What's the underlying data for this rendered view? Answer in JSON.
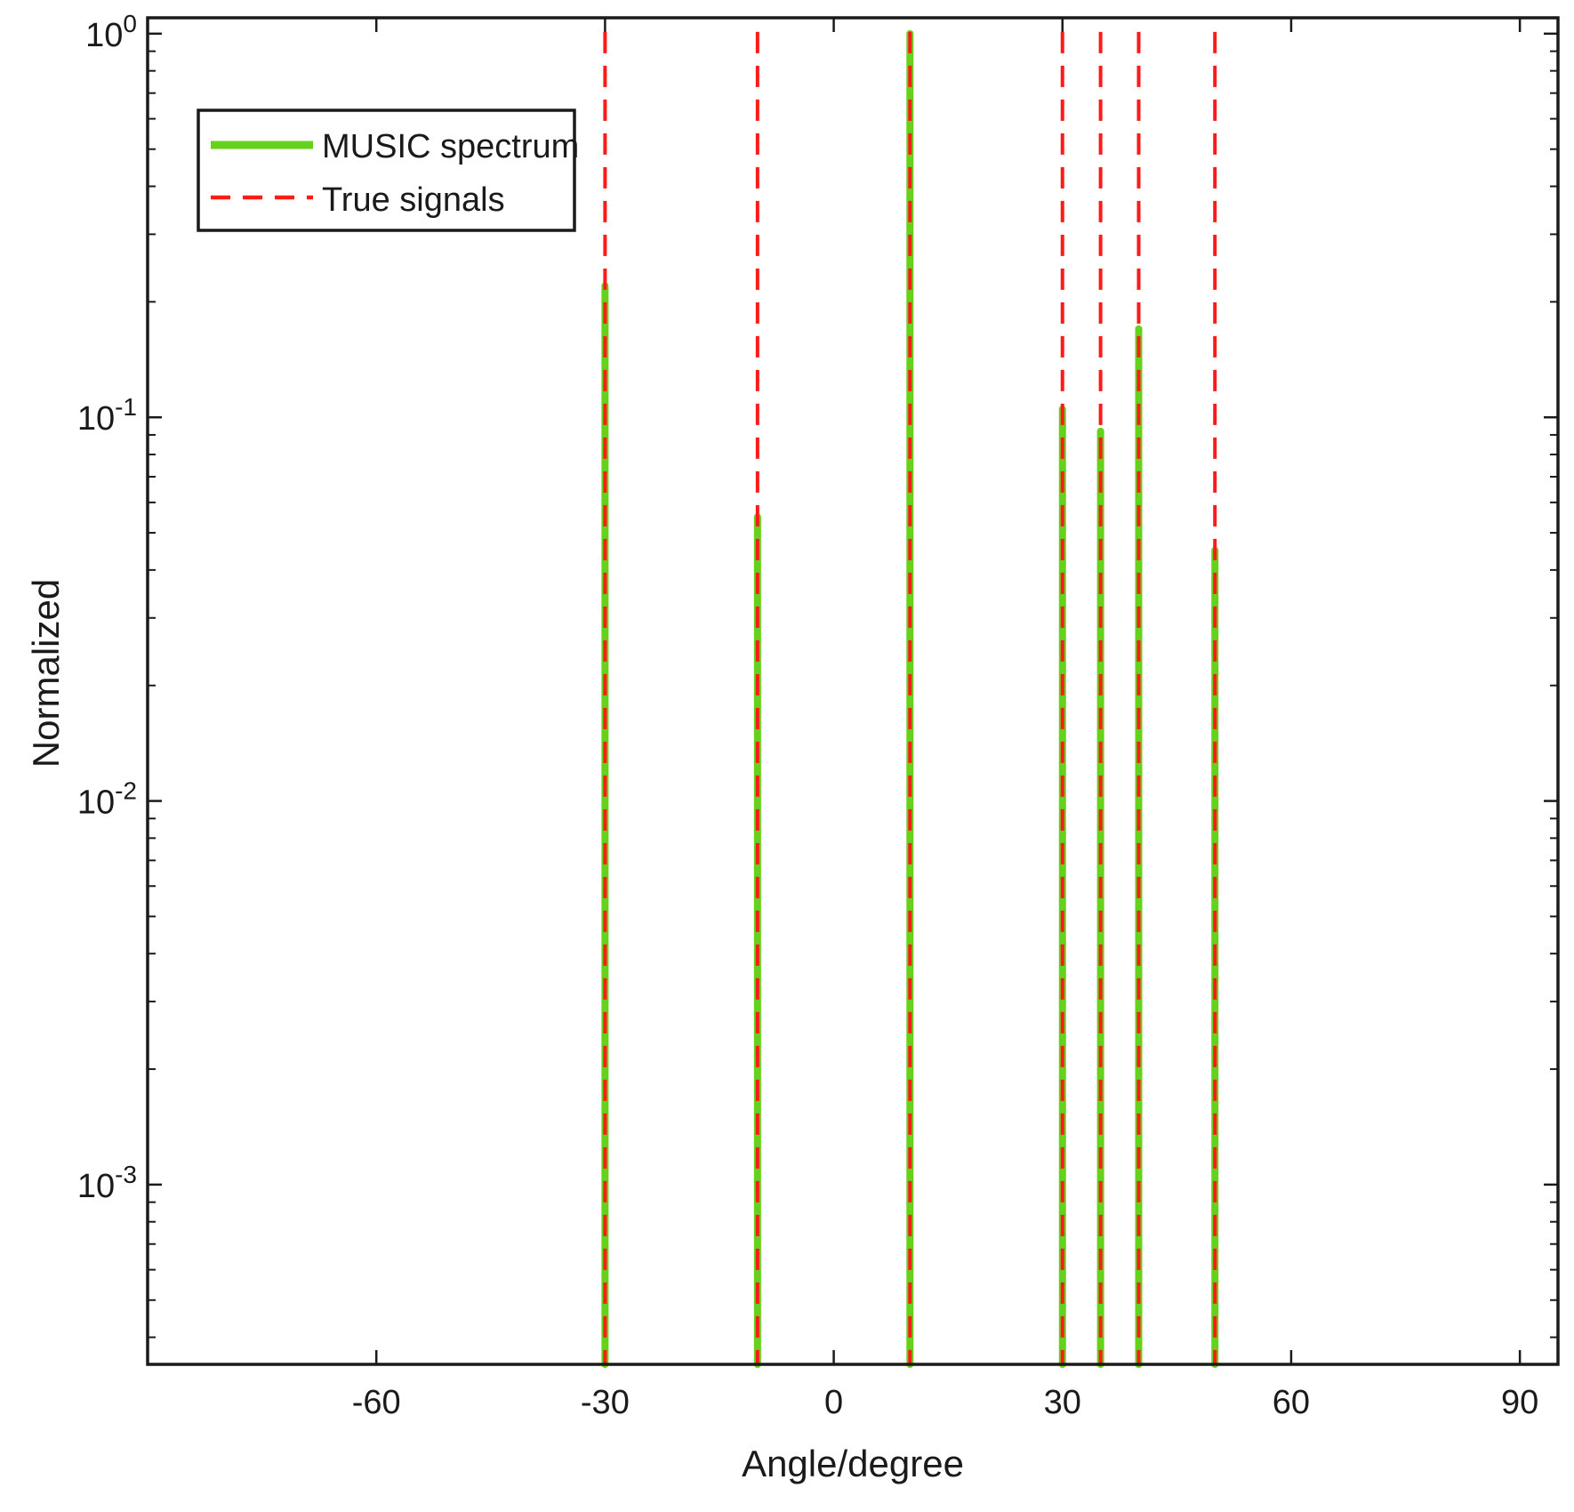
{
  "chart_data": {
    "type": "line",
    "xlabel": "Angle/degree",
    "ylabel": "Normalized",
    "xlim": [
      -90,
      95
    ],
    "ylim": [
      0.00034,
      1.1
    ],
    "y_scale": "log",
    "grid": false,
    "legend_placement": "top-left",
    "x_ticks": [
      -60,
      -30,
      0,
      30,
      60,
      90
    ],
    "x_tick_labels": [
      "-60",
      "-30",
      "0",
      "30",
      "60",
      "90"
    ],
    "y_ticks": [
      0.001,
      0.01,
      0.1,
      1
    ],
    "y_tick_labels": [
      {
        "base": "10",
        "exp": "-3"
      },
      {
        "base": "10",
        "exp": "-2"
      },
      {
        "base": "10",
        "exp": "-1"
      },
      {
        "base": "10",
        "exp": "0"
      }
    ],
    "series": [
      {
        "name": "MUSIC spectrum",
        "style": "solid",
        "color": "#66d11a",
        "peaks": [
          {
            "x": -30,
            "y": 0.22
          },
          {
            "x": -10,
            "y": 0.055
          },
          {
            "x": 10,
            "y": 1.0
          },
          {
            "x": 30,
            "y": 0.105
          },
          {
            "x": 35,
            "y": 0.092
          },
          {
            "x": 40,
            "y": 0.17
          },
          {
            "x": 50,
            "y": 0.045
          }
        ]
      },
      {
        "name": "True signals",
        "style": "dashed",
        "color": "#ff1a1a",
        "x": [
          -30,
          -10,
          10,
          30,
          35,
          40,
          50
        ]
      }
    ]
  }
}
